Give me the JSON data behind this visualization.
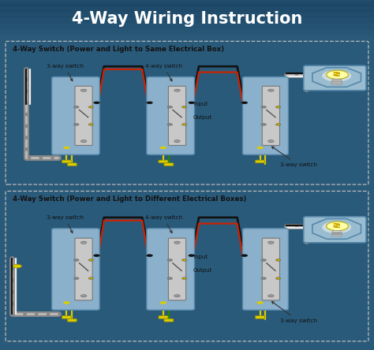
{
  "title": "4-Way Wiring Instruction",
  "title_bg_top": "#3a6a8a",
  "title_bg_bot": "#1a4060",
  "title_text_color": "#ffffff",
  "title_fontsize": 15,
  "outer_bg": "#2a5a7a",
  "panel_bg": "#f0f0f0",
  "panel_border": "#bbbbbb",
  "panel1_title": "4-Way Switch (Power and Light to Same Electrical Box)",
  "panel2_title": "4-Way Switch (Power and Light to Different Electrical Boxes)",
  "label_3way_left": "3-way switch",
  "label_4way": "4-way switch",
  "label_3way_right": "3-way switch",
  "label_input": "Input",
  "label_output": "Output",
  "wire_black": "#111111",
  "wire_red": "#cc2200",
  "wire_yellow": "#ddcc00",
  "wire_green": "#228800",
  "wire_gray": "#999999",
  "wire_white": "#eeeeee",
  "conduit_color": "#aaaaaa",
  "switch_fill": "#cccccc",
  "switch_border": "#888888",
  "box_fill": "#8ab0cc",
  "box_border": "#5588aa",
  "lamp_housing": "#9abcd0",
  "lamp_bulb": "#ffffaa",
  "lamp_base": "#cccccc"
}
